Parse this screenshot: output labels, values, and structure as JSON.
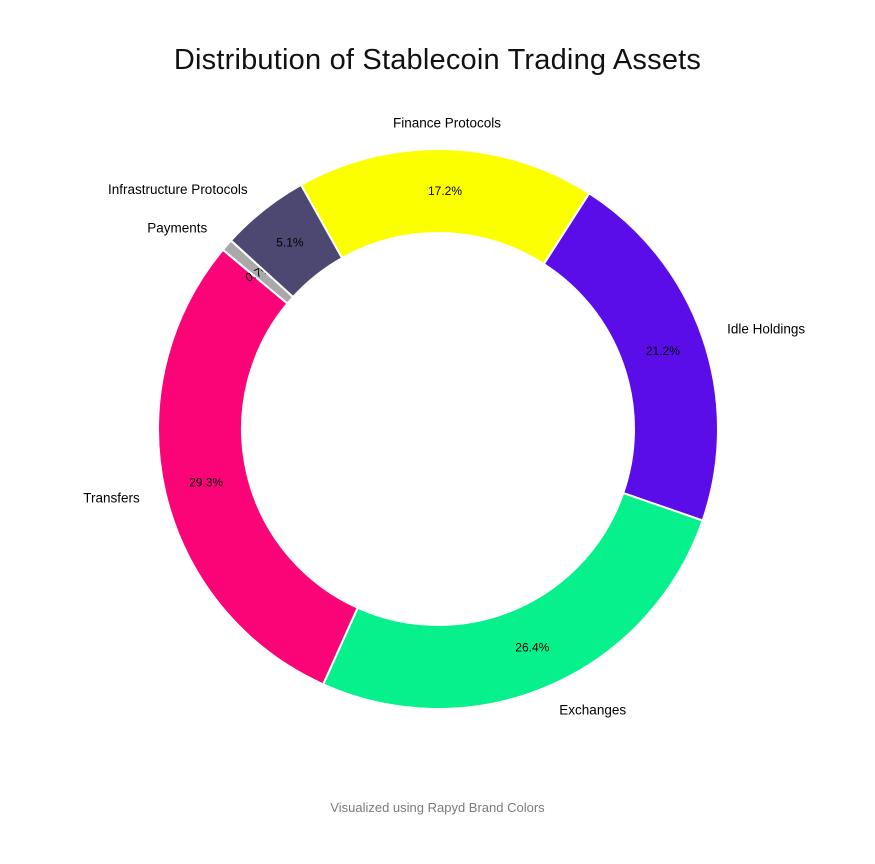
{
  "title": "Distribution of Stablecoin Trading Assets",
  "caption": "Visualized using Rapyd Brand Colors",
  "chart_data": {
    "type": "pie",
    "subtype": "donut",
    "title": "Distribution of Stablecoin Trading Assets",
    "labels": [
      "Finance Protocols",
      "Idle Holdings",
      "Exchanges",
      "Transfers",
      "Payments",
      "Infrastructure Protocols"
    ],
    "values": [
      17.2,
      21.2,
      26.4,
      29.3,
      0.7,
      5.1
    ],
    "value_labels": [
      "17.2%",
      "21.2%",
      "26.4%",
      "29.3%",
      "0.7%",
      "5.1%"
    ],
    "colors": [
      "#FCFF00",
      "#5A0DE8",
      "#06F18C",
      "#FB0478",
      "#A9A9A9",
      "#4C4872"
    ],
    "hole": 0.7,
    "direction": "clockwise",
    "start_angle_deg_cw_from_north": -29.3,
    "slice_border_color": "#FFFFFF",
    "percent_position": "inside",
    "label_position": "outside",
    "legend": "none",
    "background": "#FFFFFF"
  }
}
